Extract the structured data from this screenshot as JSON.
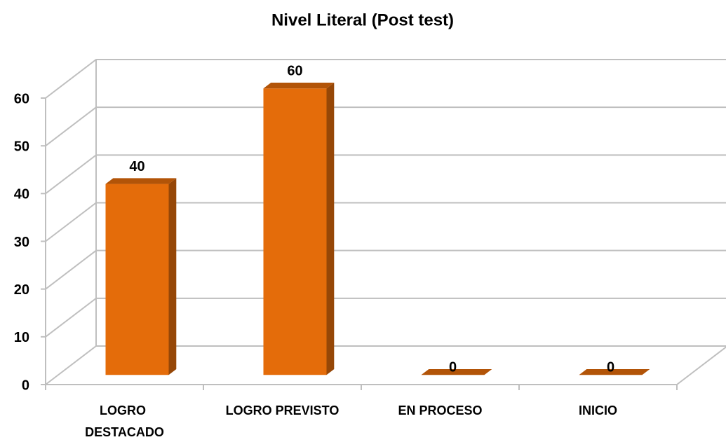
{
  "chart_data": {
    "type": "bar3d",
    "title": "Nivel Literal (Post test)",
    "categories": [
      "LOGRO DESTACADO",
      "LOGRO PREVISTO",
      "EN PROCESO",
      "INICIO"
    ],
    "values": [
      40,
      60,
      0,
      0
    ],
    "color": "#e46c0a",
    "ylim": [
      0,
      60
    ],
    "yticks": [
      0,
      10,
      20,
      30,
      40,
      50,
      60
    ],
    "grid": true
  }
}
